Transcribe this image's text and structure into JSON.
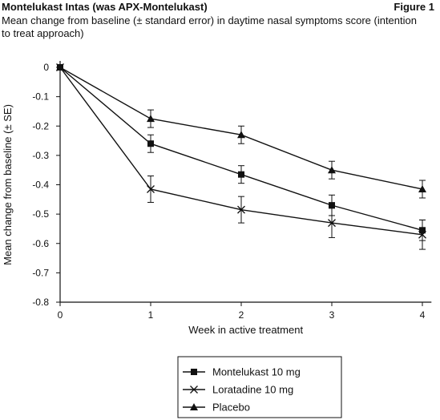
{
  "header": {
    "title": "Montelukast Intas (was APX-Montelukast)",
    "figure_label": "Figure 1",
    "subtitle": "Mean change from baseline (± standard error) in daytime nasal symptoms score (intention to treat approach)"
  },
  "chart_data": {
    "type": "line",
    "title": "Mean change from baseline (± standard error) in daytime nasal symptoms score (intention to treat approach)",
    "xlabel": "Week in active treatment",
    "ylabel": "Mean change from baseline (± SE)",
    "x": [
      0,
      1,
      2,
      3,
      4
    ],
    "xticks": [
      "0",
      "1",
      "2",
      "3",
      "4"
    ],
    "yticks": [
      "0",
      "-0.1",
      "-0.2",
      "-0.3",
      "-0.4",
      "-0.5",
      "-0.6",
      "-0.7",
      "-0.8"
    ],
    "xlim": [
      0,
      4.1
    ],
    "ylim": [
      -0.8,
      0
    ],
    "grid": false,
    "legend_position": "bottom-center",
    "series": [
      {
        "name": "Montelukast 10 mg",
        "marker": "square",
        "values": [
          0,
          -0.26,
          -0.365,
          -0.47,
          -0.555
        ],
        "se": [
          0,
          0.03,
          0.03,
          0.035,
          0.035
        ]
      },
      {
        "name": "Loratadine 10 mg",
        "marker": "x",
        "values": [
          0,
          -0.415,
          -0.485,
          -0.53,
          -0.57
        ],
        "se": [
          0,
          0.045,
          0.045,
          0.05,
          0.05
        ]
      },
      {
        "name": "Placebo",
        "marker": "triangle",
        "values": [
          0,
          -0.175,
          -0.23,
          -0.35,
          -0.415
        ],
        "se": [
          0,
          0.03,
          0.03,
          0.03,
          0.03
        ]
      }
    ]
  }
}
